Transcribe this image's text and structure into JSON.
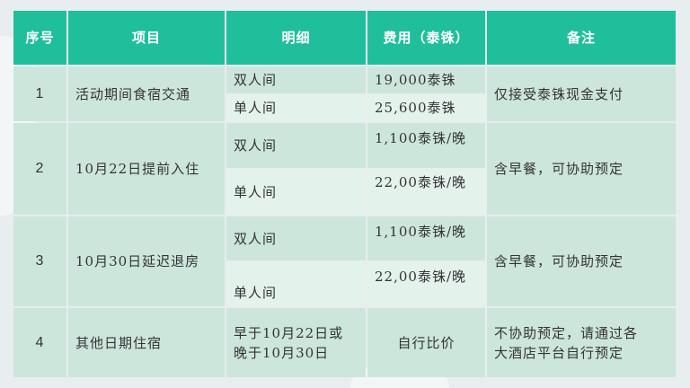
{
  "headers": [
    "序号",
    "项目",
    "明细",
    "费用（泰铢）",
    "备注"
  ],
  "rows": [
    {
      "no": "1",
      "item": "活动期间食宿交通",
      "details": [
        {
          "room": "双人间",
          "fee": "19,000泰铢"
        },
        {
          "room": "单人间",
          "fee": "25,600泰铢"
        }
      ],
      "note": "仅接受泰铢现金支付"
    },
    {
      "no": "2",
      "item": "10月22日提前入住",
      "details": [
        {
          "room": "双人间",
          "fee": "1,100泰铢/晚"
        },
        {
          "room": "单人间",
          "fee": "22,00泰铢/晚"
        }
      ],
      "note": "含早餐，可协助预定"
    },
    {
      "no": "3",
      "item": "10月30日延迟退房",
      "details": [
        {
          "room": "双人间",
          "fee": "1,100泰铢/晚"
        },
        {
          "room": "单人间",
          "fee": "22,00泰铢/晚"
        }
      ],
      "note": "含早餐，可协助预定"
    },
    {
      "no": "4",
      "item": "其他日期住宿",
      "detail_text": [
        "早于10月22日或",
        "晚于10月30日"
      ],
      "fee": "自行比价",
      "note_lines": [
        "不协助预定，请通过各",
        "大酒店平台自行预定"
      ]
    }
  ],
  "colors": {
    "header": "#20bf9b",
    "cell": "#cde6dc",
    "cell_light": "#e4f2ec",
    "background": "#e8edef"
  }
}
